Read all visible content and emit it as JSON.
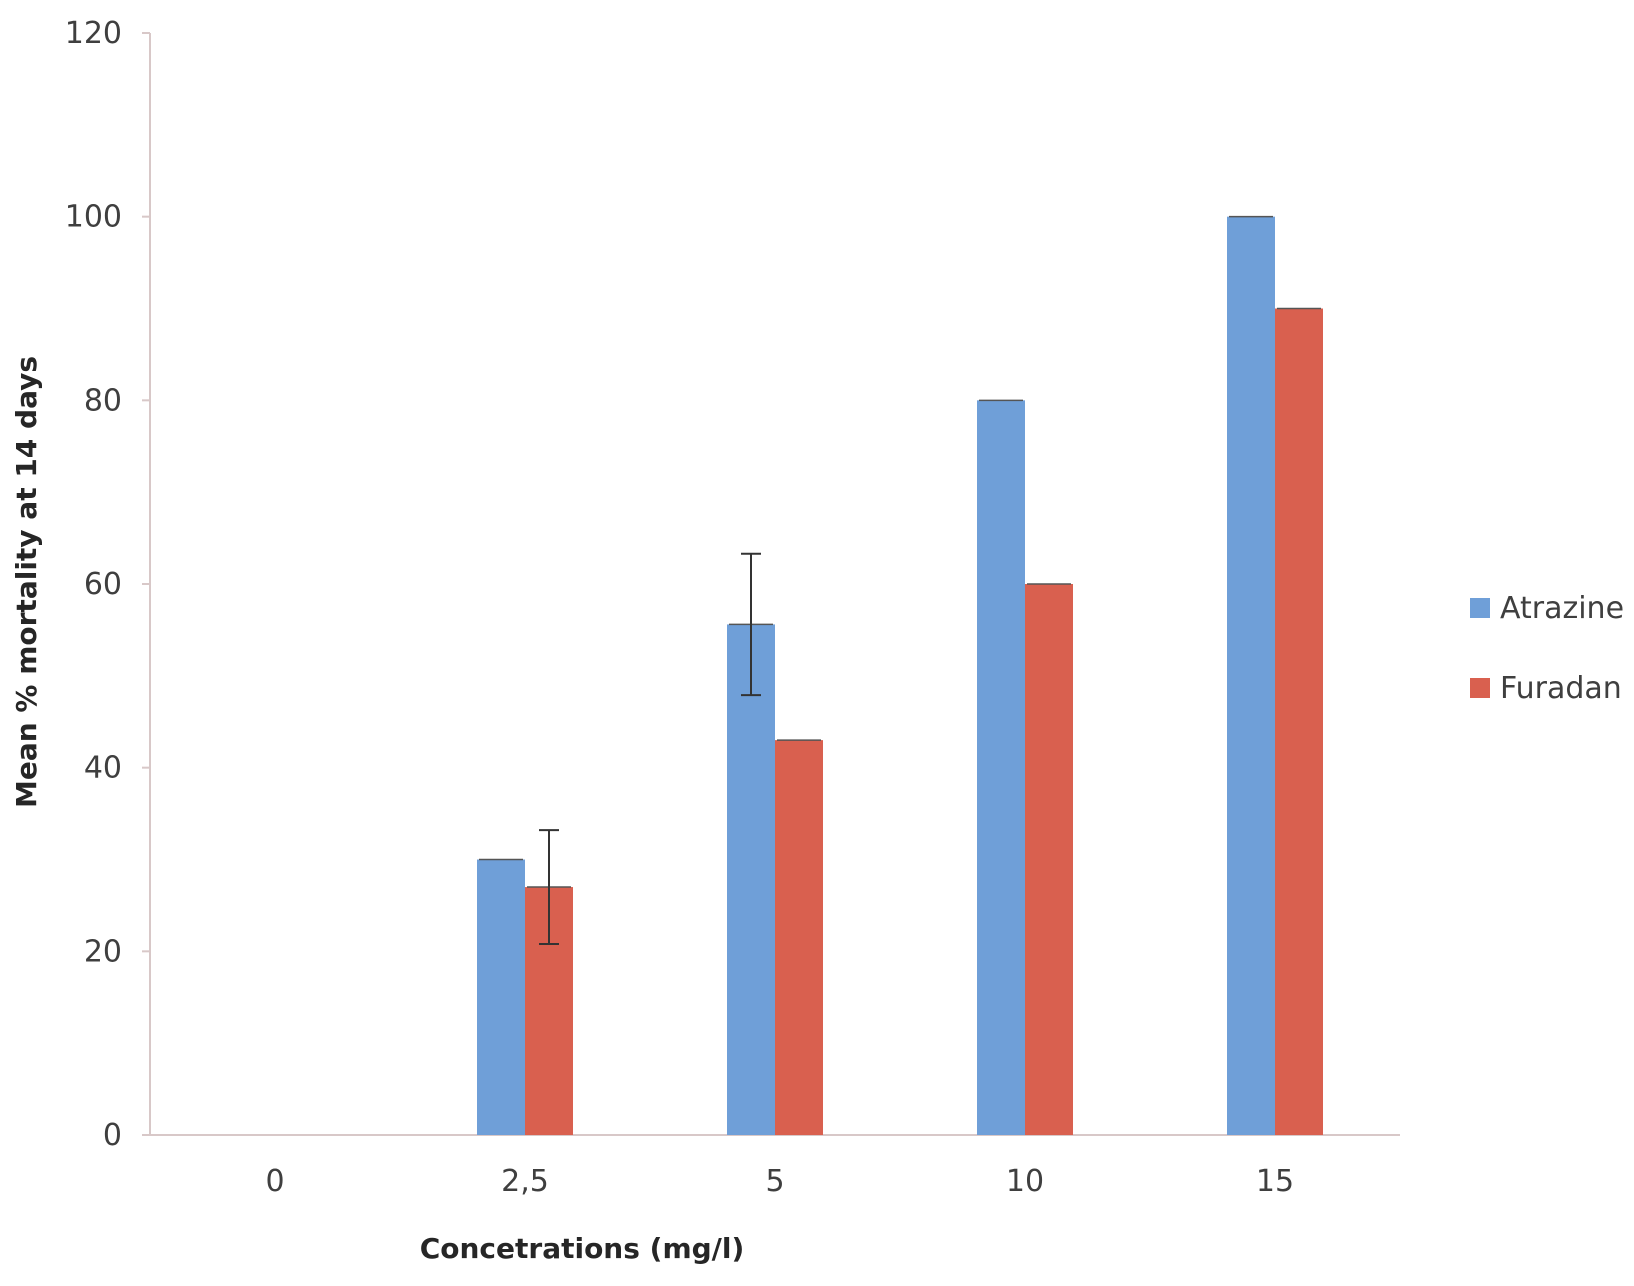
{
  "chart_data": {
    "type": "bar",
    "xlabel": "Concetrations (mg/l)",
    "ylabel": "Mean % mortality at 14 days",
    "ylim": [
      0,
      120
    ],
    "yticks": [
      "0",
      "20",
      "40",
      "60",
      "80",
      "100",
      "120"
    ],
    "categories": [
      "0",
      "2,5",
      "5",
      "10",
      "15"
    ],
    "series": [
      {
        "name": "Atrazine",
        "color": "#6f9fd8",
        "values": [
          0,
          30,
          55.6,
          80,
          100
        ],
        "errors": [
          0,
          0,
          7.7,
          0,
          0
        ]
      },
      {
        "name": "Furadan",
        "color": "#d9604f",
        "values": [
          0,
          27,
          43,
          60,
          90
        ],
        "errors": [
          0,
          6.2,
          0,
          0,
          0
        ]
      }
    ],
    "grid": false,
    "legend_position": "right"
  }
}
